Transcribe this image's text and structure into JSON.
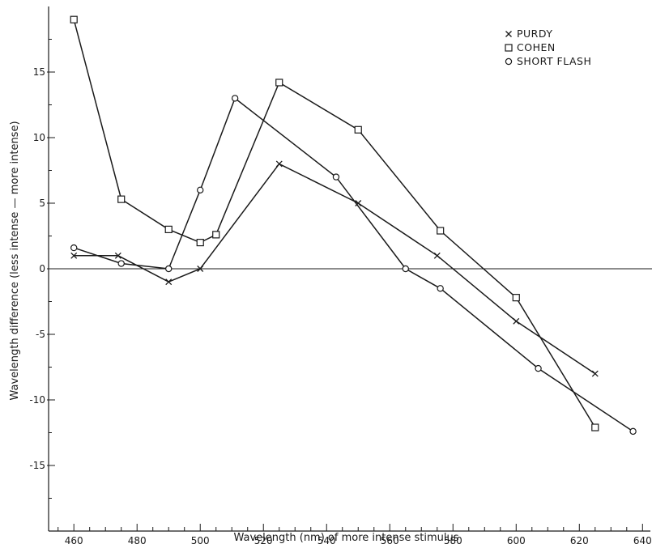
{
  "chart_data": {
    "type": "line",
    "title": "",
    "xlabel": "Wavelength (nm) of more intense stimulus",
    "ylabel": "Wavelength difference (less intense — more intense)",
    "xlim": [
      452,
      643
    ],
    "ylim": [
      -20,
      20
    ],
    "xticks": [
      460,
      480,
      500,
      520,
      540,
      560,
      580,
      600,
      620,
      640
    ],
    "xtick_labels": [
      "460",
      "480",
      "500",
      "520",
      "540",
      "560",
      "580",
      "600",
      "620",
      "640"
    ],
    "xminor_step": 5,
    "yticks": [
      15,
      10,
      5,
      0,
      -5,
      -10,
      -15
    ],
    "ytick_labels": [
      "15",
      "10",
      "5",
      "0",
      "-5",
      "-10",
      "-15"
    ],
    "zero_line": true,
    "grid": false,
    "legend_position": "top-right",
    "series": [
      {
        "name": "PURDY",
        "marker": "x",
        "x": [
          460,
          474,
          490,
          500,
          525,
          550,
          575,
          600,
          625
        ],
        "y": [
          1.0,
          1.0,
          -1.0,
          0.0,
          8.0,
          5.0,
          1.0,
          -4.0,
          -8.0
        ]
      },
      {
        "name": "COHEN",
        "marker": "square",
        "x": [
          460,
          475,
          490,
          500,
          505,
          525,
          550,
          576,
          600,
          625
        ],
        "y": [
          19.0,
          5.3,
          3.0,
          2.0,
          2.6,
          14.2,
          10.6,
          2.9,
          -2.2,
          -12.1
        ]
      },
      {
        "name": "SHORT FLASH",
        "marker": "circle",
        "x": [
          460,
          475,
          490,
          500,
          511,
          543,
          565,
          576,
          607,
          637
        ],
        "y": [
          1.6,
          0.4,
          0.0,
          6.0,
          13.0,
          7.0,
          0.0,
          -1.5,
          -7.6,
          -12.4
        ]
      }
    ]
  }
}
